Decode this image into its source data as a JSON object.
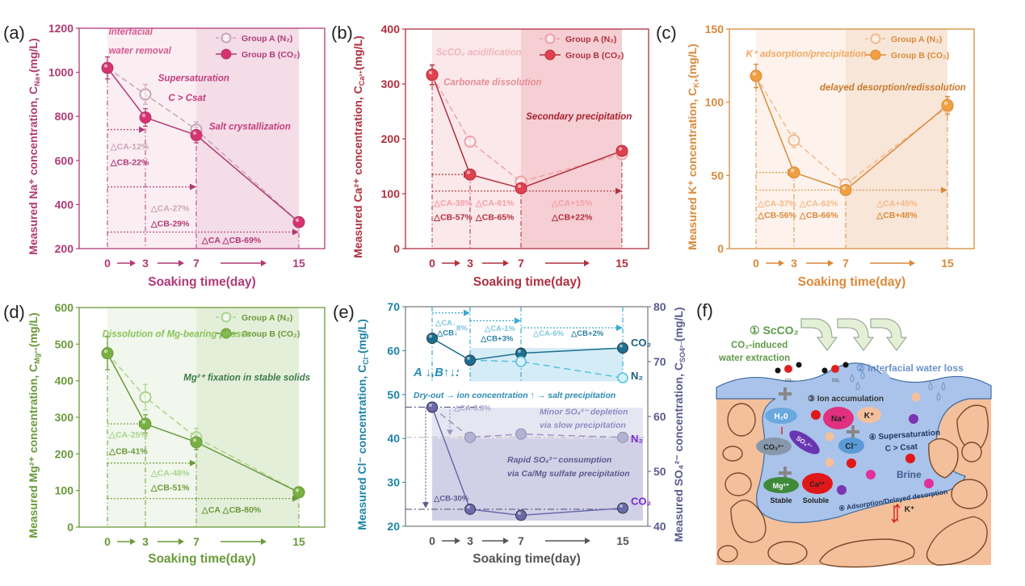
{
  "chart_data": [
    {
      "id": "a",
      "panel_label": "(a)",
      "type": "line",
      "color": "#b03a76",
      "point_color": "#d6336f",
      "light_color": "#c9a4b6",
      "shade_colors": [
        "#fbeef3",
        "#f5dde7"
      ],
      "ylabel_main": "Measured Na⁺ concentration,",
      "ylabel_sym": "C",
      "ylabel_sub": "Na+",
      "ylabel_unit": "(mg/L)",
      "xlabel": "Soaking time(day)",
      "x": [
        0,
        3,
        7,
        15
      ],
      "x_tick_labels": [
        "0",
        "3",
        "7",
        "15"
      ],
      "ylim": [
        200,
        1200
      ],
      "yticks": [
        200,
        400,
        600,
        800,
        1000,
        1200
      ],
      "series": [
        {
          "name": "Group A (N₂)",
          "style": "dashed",
          "marker": "hollow",
          "values": [
            1020,
            900,
            740,
            320
          ],
          "errors": [
            50,
            45,
            35,
            15
          ]
        },
        {
          "name": "Group B (CO₂)",
          "style": "solid",
          "marker": "filled",
          "values": [
            1020,
            795,
            715,
            320
          ],
          "errors": [
            50,
            40,
            35,
            15
          ]
        }
      ],
      "legend": {
        "placement": "top-right",
        "entries": [
          "Group A (N₂)",
          "Group B (CO₂)"
        ]
      },
      "annotations": [
        {
          "text": "Interfacial",
          "x": 0.1,
          "y": 1170,
          "color": "#d6588f"
        },
        {
          "text": "water removal",
          "x": 0.1,
          "y": 1085,
          "color": "#d6588f"
        },
        {
          "text": "Supersaturation",
          "x": 4.0,
          "y": 960,
          "color": "#c23b7e"
        },
        {
          "text": "C > Csat",
          "x": 4.8,
          "y": 870,
          "color": "#c23b7e"
        },
        {
          "text": "Salt crystallization",
          "x": 8.0,
          "y": 740,
          "color": "#c23b7e"
        }
      ],
      "deltas": [
        {
          "lines": [
            "△CA-12%",
            "△CB-22%"
          ],
          "x": 0.1,
          "y": [
            650,
            580
          ]
        },
        {
          "lines": [
            "△CA-27%",
            "△CB-29%"
          ],
          "x": 3.3,
          "y": [
            370,
            300
          ]
        },
        {
          "lines": [
            "△CA △CB-69%"
          ],
          "x": 7.3,
          "y": [
            225
          ]
        }
      ],
      "ref_arrows": [
        {
          "from": 0,
          "to": 3,
          "y": 740
        },
        {
          "from": 0,
          "to": 7,
          "y": 480
        },
        {
          "from": 0,
          "to": 15,
          "y": 275
        }
      ]
    },
    {
      "id": "b",
      "panel_label": "(b)",
      "type": "line",
      "color": "#b0303f",
      "point_color": "#e0404f",
      "light_color": "#f2a0a8",
      "shade_colors": [
        "#fbe8ea",
        "#f5cfd3"
      ],
      "ylabel_main": "Measured Ca²⁺ concentration,",
      "ylabel_sym": "C",
      "ylabel_sub": "Ca²⁺",
      "ylabel_unit": "(mg/L)",
      "xlabel": "Soaking time(day)",
      "x": [
        0,
        3,
        7,
        15
      ],
      "x_tick_labels": [
        "0",
        "3",
        "7",
        "15"
      ],
      "ylim": [
        0,
        400
      ],
      "yticks": [
        0,
        100,
        200,
        300,
        400
      ],
      "series": [
        {
          "name": "Group A (N₂)",
          "style": "dashed",
          "marker": "hollow",
          "values": [
            315,
            195,
            122,
            172
          ],
          "errors": [
            18,
            8,
            6,
            8
          ]
        },
        {
          "name": "Group B (CO₂)",
          "style": "solid",
          "marker": "filled",
          "values": [
            317,
            135,
            110,
            178
          ],
          "errors": [
            18,
            6,
            5,
            8
          ]
        }
      ],
      "legend": {
        "placement": "top-right",
        "entries": [
          "Group A (N₂)",
          "Group B (CO₂)"
        ]
      },
      "annotations": [
        {
          "text": "ScCO₂ acidification",
          "x": 0.3,
          "y": 352,
          "color": "#f2b4b9"
        },
        {
          "text": "Carbonate dissolution",
          "x": 0.9,
          "y": 298,
          "color": "#e58e96"
        },
        {
          "text": "Secondary precipitation",
          "x": 7.4,
          "y": 235,
          "color": "#a82233"
        }
      ],
      "deltas": [
        {
          "lines": [
            "△CA-38%",
            "△CB-57%"
          ],
          "x": 0.0,
          "y": [
            78,
            52
          ]
        },
        {
          "lines": [
            "△CA-61%",
            "△CB-65%"
          ],
          "x": 3.3,
          "y": [
            78,
            52
          ]
        },
        {
          "lines": [
            "△CA+15%",
            "△CB+22%"
          ],
          "x": 9.3,
          "y": [
            78,
            52
          ]
        }
      ],
      "ref_arrows": [
        {
          "from": 0,
          "to": 3,
          "y": 135
        },
        {
          "from": 0,
          "to": 15,
          "y": 105
        }
      ]
    },
    {
      "id": "c",
      "panel_label": "(c)",
      "type": "line",
      "color": "#d98a3a",
      "point_color": "#f0a040",
      "light_color": "#f3b98a",
      "shade_colors": [
        "#fdf3ec",
        "#f8e6d8"
      ],
      "ylabel_main": "Measured K⁺ concentration,",
      "ylabel_sym": "C",
      "ylabel_sub": "K+",
      "ylabel_unit": "(mg/L)",
      "xlabel": "Soaking time(day)",
      "x": [
        0,
        3,
        7,
        15
      ],
      "x_tick_labels": [
        "0",
        "3",
        "7",
        "15"
      ],
      "ylim": [
        0,
        150
      ],
      "yticks": [
        0,
        50,
        100,
        150
      ],
      "series": [
        {
          "name": "Group A (N₂)",
          "style": "dashed",
          "marker": "hollow",
          "values": [
            118,
            74,
            44,
            97
          ],
          "errors": [
            8,
            5,
            3,
            6
          ]
        },
        {
          "name": "Group B (CO₂)",
          "style": "solid",
          "marker": "filled",
          "values": [
            118,
            52,
            40,
            98
          ],
          "errors": [
            8,
            3,
            3,
            6
          ]
        }
      ],
      "legend": {
        "placement": "top-right",
        "entries": [
          "Group A (N₂)",
          "Group B (CO₂)"
        ]
      },
      "annotations": [
        {
          "text": "K⁺ adsorption/precipitation",
          "x": -0.8,
          "y": 131,
          "color": "#f0a862"
        },
        {
          "text": "delayed desorption/redissolution",
          "x": 5.0,
          "y": 108,
          "color": "#c97a2e"
        }
      ],
      "deltas": [
        {
          "lines": [
            "△CA-37%",
            "△CB-56%"
          ],
          "x": 0.0,
          "y": [
            29,
            21
          ]
        },
        {
          "lines": [
            "△CA-62%",
            "△CB-66%"
          ],
          "x": 3.3,
          "y": [
            29,
            21
          ]
        },
        {
          "lines": [
            "△CA+45%",
            "△CB+48%"
          ],
          "x": 9.3,
          "y": [
            29,
            21
          ]
        }
      ],
      "ref_arrows": [
        {
          "from": 0,
          "to": 3,
          "y": 52
        },
        {
          "from": 0,
          "to": 15,
          "y": 40
        }
      ]
    },
    {
      "id": "d",
      "panel_label": "(d)",
      "type": "line",
      "color": "#6a9a3a",
      "point_color": "#78b043",
      "light_color": "#a9d48c",
      "shade_colors": [
        "#f1f7ec",
        "#e4efda"
      ],
      "ylabel_main": "Measured Mg²⁺ concentration,",
      "ylabel_sym": "C",
      "ylabel_sub": "Mg²⁺",
      "ylabel_unit": "(mg/L)",
      "xlabel": "Soaking time(day)",
      "x": [
        0,
        3,
        7,
        15
      ],
      "x_tick_labels": [
        "0",
        "3",
        "7",
        "15"
      ],
      "ylim": [
        0,
        600
      ],
      "yticks": [
        0,
        100,
        200,
        300,
        400,
        500,
        600
      ],
      "series": [
        {
          "name": "Group A (N₂)",
          "style": "dashed",
          "marker": "hollow",
          "values": [
            475,
            355,
            245,
            95
          ],
          "errors": [
            45,
            35,
            25,
            8
          ]
        },
        {
          "name": "Group B (CO₂)",
          "style": "solid",
          "marker": "filled",
          "values": [
            475,
            282,
            232,
            95
          ],
          "errors": [
            45,
            25,
            20,
            8
          ]
        }
      ],
      "legend": {
        "placement": "top-right",
        "entries": [
          "Group A (N₂)",
          "Group B (CO₂)"
        ]
      },
      "annotations": [
        {
          "text": "Dissolution of Mg-bearing phases",
          "x": -0.4,
          "y": 520,
          "color": "#8cc25c"
        },
        {
          "text": "Mg²⁺ fixation in stable solids",
          "x": 6.0,
          "y": 400,
          "color": "#3d7a4a"
        }
      ],
      "deltas": [
        {
          "lines": [
            "△CA-25%",
            "△CB-41%"
          ],
          "x": 0.0,
          "y": [
            245,
            200
          ]
        },
        {
          "lines": [
            "△CA-48%",
            "△CB-51%"
          ],
          "x": 3.3,
          "y": [
            140,
            100
          ]
        },
        {
          "lines": [
            "△CA △CB-80%"
          ],
          "x": 7.3,
          "y": [
            40
          ]
        }
      ],
      "ref_arrows": [
        {
          "from": 0,
          "to": 3,
          "y": 282
        },
        {
          "from": 0,
          "to": 7,
          "y": 175
        },
        {
          "from": 0,
          "to": 15,
          "y": 78
        }
      ]
    },
    {
      "id": "e",
      "panel_label": "(e)",
      "type": "line",
      "dual_axis": true,
      "left_color": "#1f84a8",
      "right_color": "#5a5a8f",
      "ylabel_left_main": "Measured Cl⁻ concentration,",
      "ylabel_left_sym": "C",
      "ylabel_left_sub": "Cl⁻",
      "ylabel_left_unit": "(mg/L)",
      "ylabel_right_main": "Measured SO₄²⁻ concentration,",
      "ylabel_right_sym": "C",
      "ylabel_right_sub": "SO4²⁻",
      "ylabel_right_unit": "(mg/L)",
      "xlabel": "Soaking time(day)",
      "x": [
        0,
        3,
        7,
        15
      ],
      "x_tick_labels": [
        "0",
        "3",
        "7",
        "15"
      ],
      "ylim_left": [
        20,
        70
      ],
      "yticks_left": [
        20,
        30,
        40,
        50,
        60,
        70
      ],
      "ylim_right": [
        40,
        80
      ],
      "yticks_right": [
        40,
        50,
        60,
        70,
        80
      ],
      "series": [
        {
          "name": "CO₂",
          "ion": "Cl⁻",
          "axis": "left",
          "style": "solid",
          "marker": "filled",
          "color": "#1b6f8f",
          "values": [
            62.8,
            57.8,
            59.4,
            60.6
          ]
        },
        {
          "name": "N₂",
          "ion": "Cl⁻",
          "axis": "left",
          "style": "dashed",
          "marker": "hollow",
          "color": "#56c2e0",
          "values": [
            62.8,
            57.8,
            57.5,
            53.8
          ]
        },
        {
          "name": "N₂",
          "ion": "SO₄²⁻",
          "axis": "right",
          "style": "dashed",
          "marker": "filled-light",
          "color": "#9a98c0",
          "values": [
            61.7,
            56.2,
            56.8,
            56.2
          ]
        },
        {
          "name": "CO₂",
          "ion": "SO₄²⁻",
          "axis": "right",
          "style": "solid",
          "marker": "filled",
          "color": "#6a6aaa",
          "values": [
            61.7,
            43.1,
            42.0,
            43.3
          ]
        }
      ],
      "series_end_labels": [
        {
          "text": "CO₂",
          "color": "#1b5f7f"
        },
        {
          "text": "N₂",
          "color": "#1b5f7f"
        },
        {
          "text": "N₂",
          "color": "#7a2ad0"
        },
        {
          "text": "CO₂",
          "color": "#7a2ad0"
        }
      ],
      "annotations": [
        {
          "text": "A ↓,B↑↓:",
          "color": "#2a8cb5"
        },
        {
          "text": "Dry-out → ion concentration ↑ → salt precipitation",
          "color": "#2a8cb5"
        },
        {
          "text": "Minor SO₄²⁻ depletion",
          "color": "#8e8cc0"
        },
        {
          "text": "via slow precipitation",
          "color": "#8e8cc0"
        },
        {
          "text": "Rapid SO₄²⁻ consumption",
          "color": "#5a5a8f"
        },
        {
          "text": "via Ca/Mg sulfate precipitation",
          "color": "#5a5a8f"
        }
      ],
      "deltas": [
        {
          "text": "△CA↓",
          "color": "#7fc6dd"
        },
        {
          "text": "8%",
          "color": "#7fc6dd"
        },
        {
          "text": "△CB↓",
          "color": "#2a7fa0"
        },
        {
          "text": "△CA-1%",
          "color": "#7fc6dd"
        },
        {
          "text": "△CB+3%",
          "color": "#2a7fa0"
        },
        {
          "text": "△CA-6%",
          "color": "#7fc6dd"
        },
        {
          "text": "△CB+2%",
          "color": "#2a7fa0"
        },
        {
          "text": "△CA-8.8%",
          "color": "#a8a6cc"
        },
        {
          "text": "△CB-30%",
          "color": "#5a5a8f"
        }
      ]
    }
  ],
  "schematic": {
    "panel_label": "(f)",
    "step1_title": "① ScCO₂",
    "step1_sub1": "CO₂-induced",
    "step1_sub2": "water extraction",
    "step2": "② Interfacial water loss",
    "step3": "③  Ion accumulation",
    "step4a_line1": "④ Supersaturation",
    "step4a_line2": "C > Csat",
    "step4b": "④ Adsorption/Delayed desorption",
    "co2_small": "CO₂",
    "ions": {
      "h2o": "H₂0",
      "co3": "CO₃²⁻",
      "so4": "SO₄²⁻",
      "na": "Na⁺",
      "k": "K⁺",
      "cl": "Cl⁻",
      "mg": "Mg²⁺",
      "ca": "Ca²⁺",
      "k2": "K⁺"
    },
    "stable_label": "Stable",
    "soluble_label": "Soluble",
    "brine_label": "Brine",
    "colors": {
      "rock": "#f4c09c",
      "rock_edge": "#7a4a2a",
      "brine": "#a9c3ea",
      "step1": "#5f9a4a",
      "step2": "#6c90c8",
      "arrow_fill": "#e3f0d6"
    }
  }
}
